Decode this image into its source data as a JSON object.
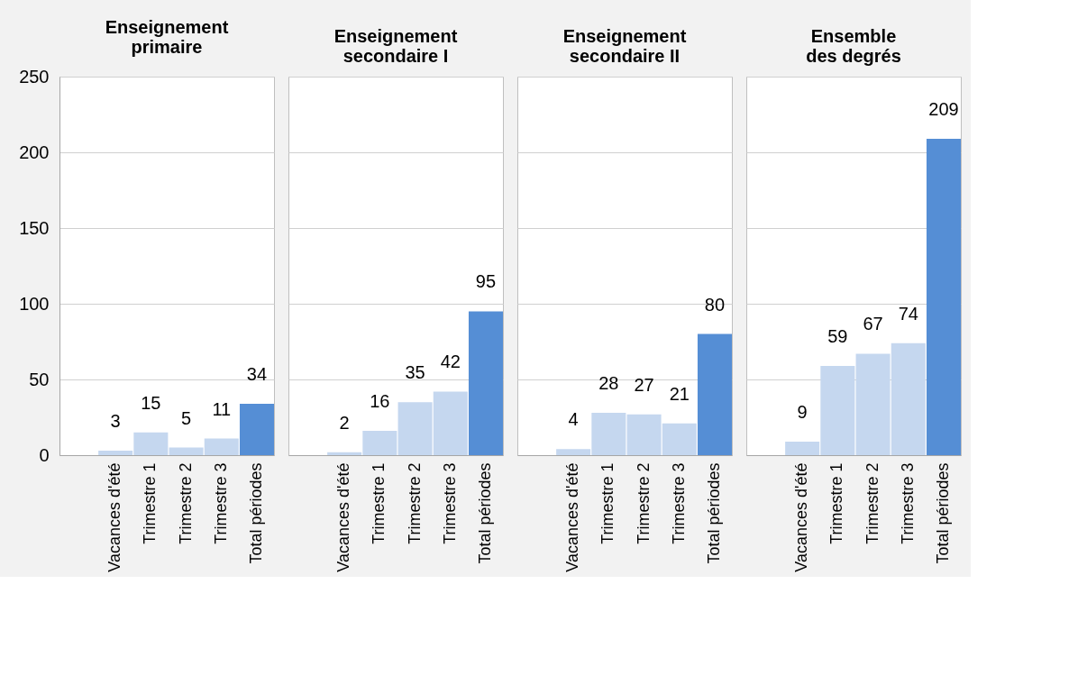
{
  "chart_data": [
    {
      "type": "bar",
      "title": "Enseignement primaire",
      "categories": [
        "Vacances d'été",
        "Trimestre 1",
        "Trimestre 2",
        "Trimestre 3",
        "Total périodes"
      ],
      "values": [
        3,
        15,
        5,
        11,
        34
      ],
      "colors": [
        "#c5d7ef",
        "#c5d7ef",
        "#c5d7ef",
        "#c5d7ef",
        "#558ed5"
      ],
      "ylim": [
        0,
        250
      ],
      "yticks": [
        0,
        50,
        100,
        150,
        200,
        250
      ],
      "grid": "y",
      "data_labels": true
    },
    {
      "type": "bar",
      "title": "Enseignement secondaire I",
      "categories": [
        "Vacances d'été",
        "Trimestre 1",
        "Trimestre 2",
        "Trimestre 3",
        "Total périodes"
      ],
      "values": [
        2,
        16,
        35,
        42,
        95
      ],
      "colors": [
        "#c5d7ef",
        "#c5d7ef",
        "#c5d7ef",
        "#c5d7ef",
        "#558ed5"
      ],
      "ylim": [
        0,
        250
      ],
      "yticks": [
        0,
        50,
        100,
        150,
        200,
        250
      ],
      "grid": "y",
      "data_labels": true,
      "tick_labels": "x"
    },
    {
      "type": "bar",
      "title": "Enseignement secondaire II",
      "categories": [
        "Vacances d'été",
        "Trimestre 1",
        "Trimestre 2",
        "Trimestre 3",
        "Total périodes"
      ],
      "values": [
        4,
        28,
        27,
        21,
        80
      ],
      "colors": [
        "#c5d7ef",
        "#c5d7ef",
        "#c5d7ef",
        "#c5d7ef",
        "#558ed5"
      ],
      "ylim": [
        0,
        250
      ],
      "yticks": [
        0,
        50,
        100,
        150,
        200,
        250
      ],
      "grid": "y",
      "data_labels": true,
      "tick_labels": "x"
    },
    {
      "type": "bar",
      "title": "Ensemble des degrés",
      "categories": [
        "Vacances d'été",
        "Trimestre 1",
        "Trimestre 2",
        "Trimestre 3",
        "Total périodes"
      ],
      "values": [
        9,
        59,
        67,
        74,
        209
      ],
      "colors": [
        "#c5d7ef",
        "#c5d7ef",
        "#c5d7ef",
        "#c5d7ef",
        "#558ed5"
      ],
      "ylim": [
        0,
        250
      ],
      "yticks": [
        0,
        50,
        100,
        150,
        200,
        250
      ],
      "grid": "y",
      "data_labels": true,
      "tick_labels": "x"
    }
  ]
}
